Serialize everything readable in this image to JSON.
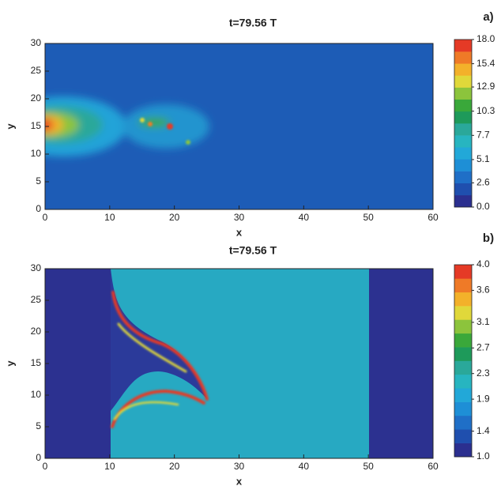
{
  "chart_data": [
    {
      "type": "heatmap",
      "title": "t=79.56 T",
      "panel_label": "a)",
      "x_label": "x",
      "y_label": "y",
      "xlim": [
        0,
        60
      ],
      "ylim": [
        0,
        30
      ],
      "xticks": [
        0,
        10,
        20,
        30,
        40,
        50,
        60
      ],
      "yticks": [
        0,
        5,
        10,
        15,
        20,
        25,
        30
      ],
      "clim": [
        0,
        18
      ],
      "cticks": [
        {
          "value": 0,
          "label": "0.0"
        },
        2.6,
        5.1,
        7.7,
        10.3,
        12.9,
        15.4,
        {
          "value": 18,
          "label": "18.0"
        }
      ],
      "colors": [
        "#2b2f8f",
        "#1f4fae",
        "#1f6fc7",
        "#1e8fd6",
        "#22a8d8",
        "#27b5c0",
        "#2aa89a",
        "#1e9a5a",
        "#3aa83a",
        "#8cc43c",
        "#e0d83a",
        "#f3b12a",
        "#ef7a27",
        "#e53a26"
      ]
    },
    {
      "type": "heatmap",
      "title": "t=79.56 T",
      "panel_label": "b)",
      "x_label": "x",
      "y_label": "y",
      "xlim": [
        0,
        60
      ],
      "ylim": [
        0,
        30
      ],
      "xticks": [
        0,
        10,
        20,
        30,
        40,
        50,
        60
      ],
      "yticks": [
        0,
        5,
        10,
        15,
        20,
        25,
        30
      ],
      "clim": [
        1,
        4
      ],
      "cticks": [
        {
          "value": 1,
          "label": "1.0"
        },
        1.4,
        1.9,
        2.3,
        2.7,
        3.1,
        3.6,
        {
          "value": 4,
          "label": "4.0"
        }
      ],
      "colors": [
        "#2b2f8f",
        "#1f4fae",
        "#1f6fc7",
        "#1e8fd6",
        "#22a8d8",
        "#27b5c0",
        "#2aa89a",
        "#1e9a5a",
        "#3aa83a",
        "#8cc43c",
        "#e0d83a",
        "#f3b12a",
        "#ef7a27",
        "#e53a26"
      ]
    }
  ]
}
